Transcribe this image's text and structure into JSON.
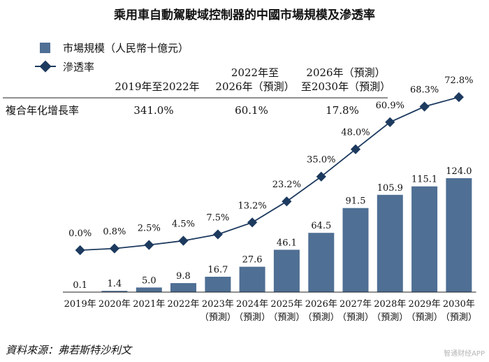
{
  "chart_data": {
    "type": "bar+line",
    "title": "乘用車自動駕駛域控制器的中國市場規模及滲透率",
    "categories": [
      {
        "year": "2019年",
        "note": ""
      },
      {
        "year": "2020年",
        "note": ""
      },
      {
        "year": "2021年",
        "note": ""
      },
      {
        "year": "2022年",
        "note": ""
      },
      {
        "year": "2023年",
        "note": "（預測）"
      },
      {
        "year": "2024年",
        "note": "（預測）"
      },
      {
        "year": "2025年",
        "note": "（預測）"
      },
      {
        "year": "2026年",
        "note": "（預測）"
      },
      {
        "year": "2027年",
        "note": "（預測）"
      },
      {
        "year": "2028年",
        "note": "（預測）"
      },
      {
        "year": "2029年",
        "note": "（預測）"
      },
      {
        "year": "2030年",
        "note": "（預測）"
      }
    ],
    "series": [
      {
        "name": "市場規模（人民幣十億元）",
        "type": "bar",
        "color": "#4f6f94",
        "values": [
          0.1,
          1.4,
          5.0,
          9.8,
          16.7,
          27.6,
          46.1,
          64.5,
          91.5,
          105.9,
          115.1,
          124.0
        ],
        "labels": [
          "0.1",
          "1.4",
          "5.0",
          "9.8",
          "16.7",
          "27.6",
          "46.1",
          "64.5",
          "91.5",
          "105.9",
          "115.1",
          "124.0"
        ]
      },
      {
        "name": "滲透率",
        "type": "line",
        "color": "#1d3a5f",
        "values": [
          0.0,
          0.8,
          2.5,
          4.5,
          7.5,
          13.2,
          23.2,
          35.0,
          48.0,
          60.9,
          68.3,
          72.8
        ],
        "labels": [
          "0.0%",
          "0.8%",
          "2.5%",
          "4.5%",
          "7.5%",
          "13.2%",
          "23.2%",
          "35.0%",
          "48.0%",
          "60.9%",
          "68.3%",
          "72.8%"
        ]
      }
    ],
    "bar_ylim": [
      0,
      124
    ],
    "line_ylim": [
      0,
      72.8
    ],
    "legend": {
      "placement": "top-left"
    },
    "cagr": {
      "row_label": "複合年化增長率",
      "periods": [
        {
          "lines": [
            "2019年至2022年"
          ],
          "value": "341.0%"
        },
        {
          "lines": [
            "2022年至",
            "2026年（預測）"
          ],
          "value": "60.1%"
        },
        {
          "lines": [
            "2026年（預測）",
            "至2030年（預測）"
          ],
          "value": "17.8%"
        }
      ]
    },
    "source": "資料來源：弗若斯特沙利文",
    "watermark": "智通财经APP"
  }
}
